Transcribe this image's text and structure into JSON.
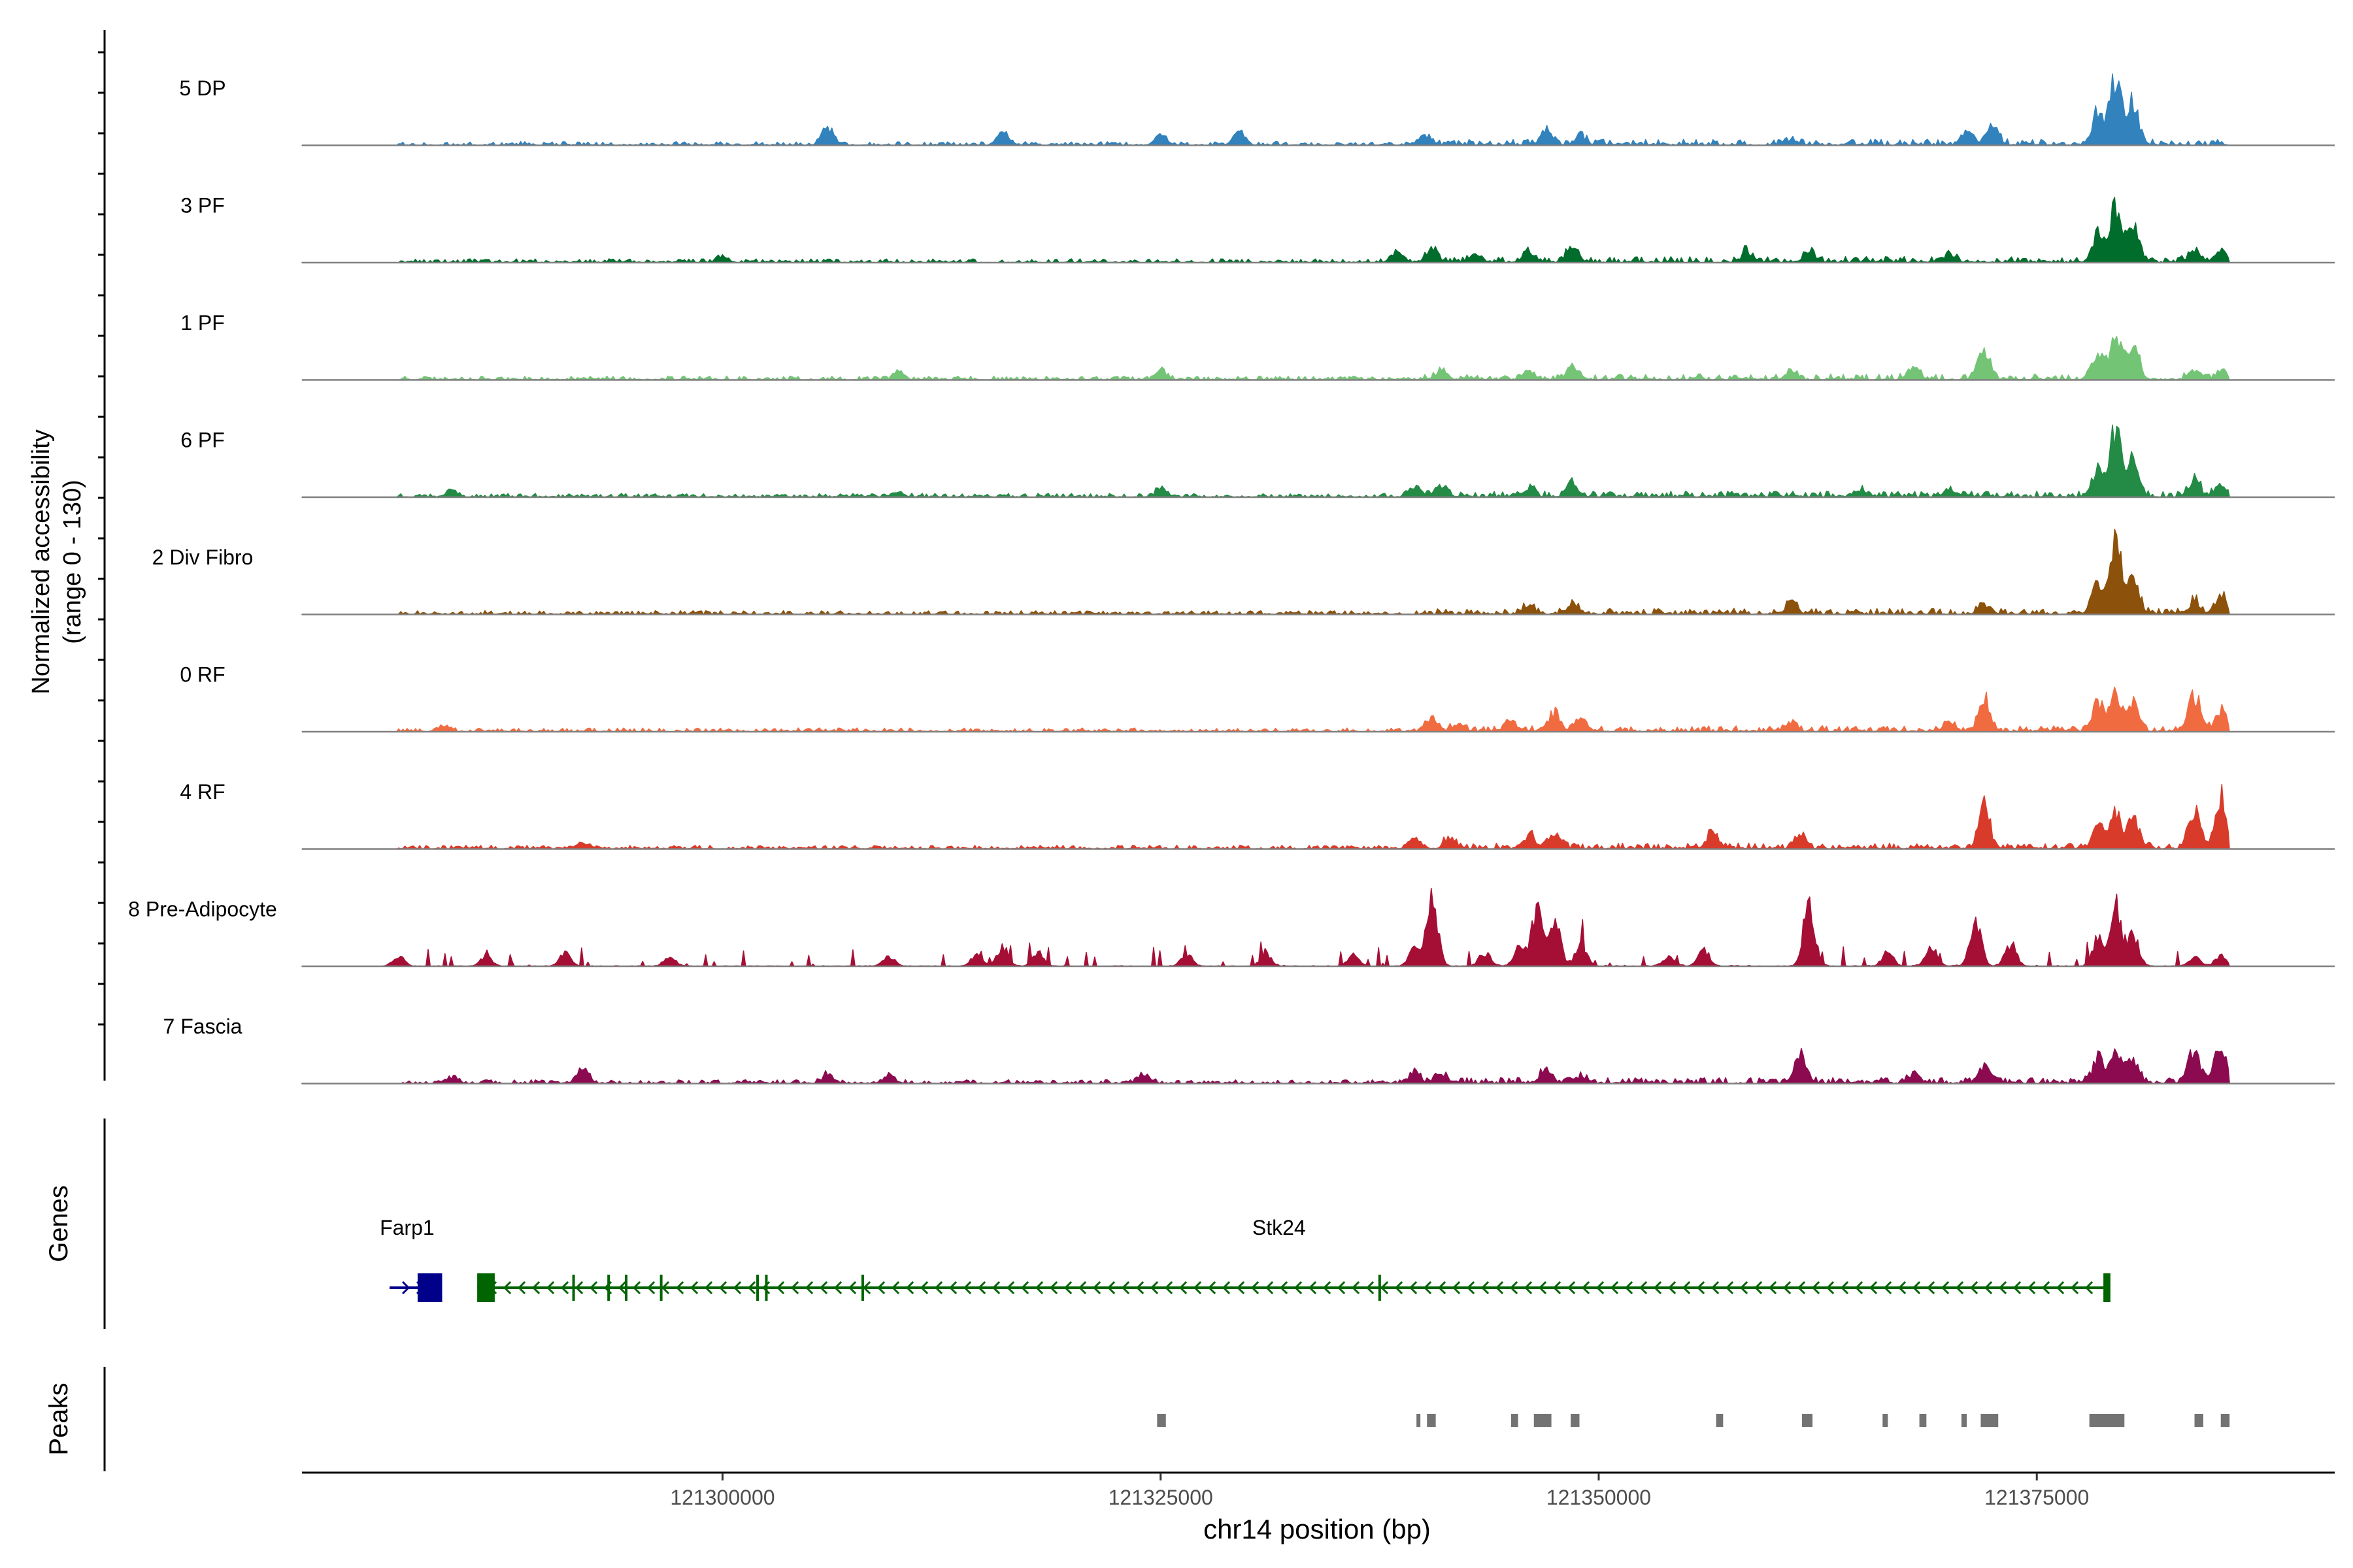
{
  "chart_data": {
    "type": "area",
    "title": "",
    "ylabel_line1": "Normalized accessibility",
    "ylabel_line2": "(range 0 - 130)",
    "xlabel": "chr14 position (bp)",
    "chromosome": "chr14",
    "x_range": [
      121276000,
      121392000
    ],
    "data_x_range": [
      121276000,
      121386000
    ],
    "x_ticks": [
      {
        "value": 121300000,
        "label": "121300000"
      },
      {
        "value": 121325000,
        "label": "121325000"
      },
      {
        "value": 121350000,
        "label": "121350000"
      },
      {
        "value": 121375000,
        "label": "121375000"
      }
    ],
    "y_range": [
      0,
      130
    ],
    "noise_level": [
      {
        "start": 121281500,
        "end": 121305000,
        "level": 5
      },
      {
        "start": 121305000,
        "end": 121340000,
        "level": 5
      },
      {
        "start": 121340000,
        "end": 121386000,
        "level": 8
      }
    ],
    "series": [
      {
        "name": "5 DP",
        "color": "#3182bd",
        "baseline": 1,
        "peaks": [
          [
            121306000,
            26
          ],
          [
            121316000,
            18
          ],
          [
            121325000,
            18
          ],
          [
            121329500,
            22
          ],
          [
            121340000,
            14
          ],
          [
            121347000,
            26
          ],
          [
            121349000,
            14
          ],
          [
            121361000,
            10
          ],
          [
            121371000,
            24
          ],
          [
            121372500,
            36
          ],
          [
            121378500,
            50
          ],
          [
            121379500,
            110
          ],
          [
            121380500,
            72
          ]
        ]
      },
      {
        "name": "3 PF",
        "color": "#006d2c",
        "baseline": 1,
        "peaks": [
          [
            121300000,
            8
          ],
          [
            121338500,
            18
          ],
          [
            121340500,
            22
          ],
          [
            121343000,
            14
          ],
          [
            121346000,
            16
          ],
          [
            121348500,
            24
          ],
          [
            121358500,
            18
          ],
          [
            121362000,
            20
          ],
          [
            121370000,
            14
          ],
          [
            121378500,
            50
          ],
          [
            121379500,
            90
          ],
          [
            121380500,
            60
          ],
          [
            121384000,
            20
          ],
          [
            121385500,
            18
          ]
        ]
      },
      {
        "name": "1 PF",
        "color": "#74c476",
        "baseline": 1,
        "peaks": [
          [
            121310000,
            10
          ],
          [
            121325000,
            16
          ],
          [
            121341000,
            14
          ],
          [
            121346000,
            14
          ],
          [
            121348500,
            20
          ],
          [
            121361000,
            12
          ],
          [
            121368000,
            16
          ],
          [
            121372000,
            50
          ],
          [
            121378500,
            40
          ],
          [
            121379500,
            78
          ],
          [
            121380500,
            58
          ],
          [
            121384000,
            14
          ],
          [
            121385500,
            16
          ]
        ]
      },
      {
        "name": "6 PF",
        "color": "#238b45",
        "baseline": 1,
        "peaks": [
          [
            121284500,
            10
          ],
          [
            121310000,
            8
          ],
          [
            121325000,
            12
          ],
          [
            121339500,
            18
          ],
          [
            121341000,
            20
          ],
          [
            121346000,
            14
          ],
          [
            121348500,
            22
          ],
          [
            121365000,
            14
          ],
          [
            121370000,
            12
          ],
          [
            121378500,
            50
          ],
          [
            121379500,
            105
          ],
          [
            121380500,
            62
          ],
          [
            121384000,
            28
          ],
          [
            121385500,
            22
          ]
        ]
      },
      {
        "name": "2 Div Fibro",
        "color": "#8c510a",
        "baseline": 1,
        "peaks": [
          [
            121346000,
            12
          ],
          [
            121348500,
            14
          ],
          [
            121361000,
            18
          ],
          [
            121372000,
            14
          ],
          [
            121378500,
            55
          ],
          [
            121379500,
            125
          ],
          [
            121380500,
            65
          ],
          [
            121384000,
            22
          ],
          [
            121385500,
            30
          ]
        ]
      },
      {
        "name": "0 RF",
        "color": "#f16b40",
        "baseline": 1,
        "peaks": [
          [
            121284000,
            10
          ],
          [
            121340500,
            18
          ],
          [
            121342000,
            12
          ],
          [
            121345000,
            14
          ],
          [
            121347500,
            30
          ],
          [
            121349000,
            22
          ],
          [
            121361000,
            14
          ],
          [
            121370000,
            16
          ],
          [
            121372000,
            50
          ],
          [
            121378500,
            48
          ],
          [
            121379500,
            62
          ],
          [
            121380500,
            48
          ],
          [
            121384000,
            62
          ],
          [
            121385500,
            34
          ]
        ]
      },
      {
        "name": "4 RF",
        "color": "#d93b2b",
        "baseline": 1,
        "peaks": [
          [
            121292000,
            10
          ],
          [
            121339500,
            16
          ],
          [
            121341500,
            18
          ],
          [
            121346000,
            22
          ],
          [
            121347500,
            26
          ],
          [
            121356500,
            26
          ],
          [
            121361500,
            18
          ],
          [
            121372000,
            70
          ],
          [
            121378500,
            40
          ],
          [
            121379500,
            58
          ],
          [
            121380500,
            50
          ],
          [
            121384000,
            68
          ],
          [
            121385500,
            85
          ]
        ]
      },
      {
        "name": "8 Pre-Adipocyte",
        "color": "#a50f36",
        "baseline": 0,
        "peaks": [
          [
            121281500,
            16
          ],
          [
            121286500,
            16
          ],
          [
            121291000,
            22
          ],
          [
            121297000,
            18
          ],
          [
            121309500,
            16
          ],
          [
            121314500,
            20
          ],
          [
            121316000,
            32
          ],
          [
            121318000,
            22
          ],
          [
            121326500,
            20
          ],
          [
            121331000,
            20
          ],
          [
            121336000,
            18
          ],
          [
            121339500,
            28
          ],
          [
            121340500,
            105
          ],
          [
            121343500,
            22
          ],
          [
            121345500,
            30
          ],
          [
            121346500,
            95
          ],
          [
            121347500,
            70
          ],
          [
            121349000,
            40
          ],
          [
            121354000,
            18
          ],
          [
            121356000,
            26
          ],
          [
            121362000,
            105
          ],
          [
            121366500,
            22
          ],
          [
            121369000,
            30
          ],
          [
            121371500,
            75
          ],
          [
            121373500,
            38
          ],
          [
            121378500,
            45
          ],
          [
            121379500,
            100
          ],
          [
            121380500,
            55
          ],
          [
            121384000,
            16
          ],
          [
            121385500,
            16
          ]
        ]
      },
      {
        "name": "7 Fascia",
        "color": "#8b0a50",
        "baseline": 1,
        "peaks": [
          [
            121284500,
            10
          ],
          [
            121292000,
            26
          ],
          [
            121306000,
            14
          ],
          [
            121309500,
            12
          ],
          [
            121324000,
            18
          ],
          [
            121339500,
            18
          ],
          [
            121341000,
            14
          ],
          [
            121347000,
            22
          ],
          [
            121349000,
            12
          ],
          [
            121361500,
            52
          ],
          [
            121368000,
            16
          ],
          [
            121372000,
            28
          ],
          [
            121378500,
            40
          ],
          [
            121379500,
            55
          ],
          [
            121380500,
            42
          ],
          [
            121384000,
            55
          ],
          [
            121385500,
            66
          ]
        ]
      }
    ],
    "genes_label": "Genes",
    "genes": [
      {
        "name": "Farp1",
        "color": "#00008b",
        "start": 121281000,
        "end": 121283200,
        "strand": "+",
        "exons": [
          [
            121282600,
            121284000
          ]
        ]
      },
      {
        "name": "Stk24",
        "color": "#006400",
        "start": 121286000,
        "end": 121379000,
        "strand": "-",
        "exons": [
          [
            121286000,
            121287000
          ],
          [
            121378800,
            121379200
          ]
        ],
        "introns_marks": [
          121291500,
          121293500,
          121294500,
          121296500,
          121302000,
          121302500,
          121308000,
          121337500
        ]
      }
    ],
    "peaks_label": "Peaks",
    "peak_regions": [
      [
        121324800,
        121325300
      ],
      [
        121339600,
        121339800
      ],
      [
        121340200,
        121340700
      ],
      [
        121345000,
        121345400
      ],
      [
        121346300,
        121347300
      ],
      [
        121348400,
        121348900
      ],
      [
        121356700,
        121357100
      ],
      [
        121361600,
        121362200
      ],
      [
        121366200,
        121366500
      ],
      [
        121368300,
        121368700
      ],
      [
        121370700,
        121371000
      ],
      [
        121371800,
        121372800
      ],
      [
        121378000,
        121380000
      ],
      [
        121384000,
        121384500
      ],
      [
        121385500,
        121386000
      ]
    ]
  }
}
